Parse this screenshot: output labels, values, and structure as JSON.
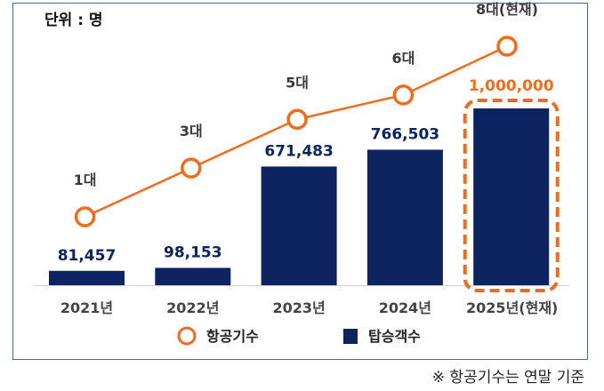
{
  "chart_data": {
    "type": "bar+line",
    "title": "",
    "unit_label": "단위 : 명",
    "categories": [
      "2021년",
      "2022년",
      "2023년",
      "2024년",
      "2025년(현재)"
    ],
    "series": [
      {
        "name": "탑승객수",
        "type": "bar",
        "color": "#0d2460",
        "values": [
          81457,
          98153,
          671483,
          766503,
          1000000
        ],
        "labels": [
          "81,457",
          "98,153",
          "671,483",
          "766,503",
          "1,000,000"
        ]
      },
      {
        "name": "항공기수",
        "type": "line",
        "color": "#f26b1d",
        "values": [
          1,
          3,
          5,
          6,
          8
        ],
        "labels": [
          "1대",
          "3대",
          "5대",
          "6대",
          "8대(현재)"
        ]
      }
    ],
    "highlight": {
      "category": "2025년(현재)",
      "style": "dashed-orange-box",
      "label_color": "#f26b1d"
    },
    "ylim_bar": [
      0,
      1000000
    ],
    "ylim_line": [
      0,
      8
    ],
    "grid": false,
    "legend": {
      "position": "bottom-center",
      "entries": [
        "항공기수",
        "탑승객수"
      ]
    },
    "footnote": "※ 항공기수는 연말 기준"
  },
  "colors": {
    "bar": "#0d2460",
    "line": "#f26b1d",
    "frame": "#4f6a8f"
  }
}
